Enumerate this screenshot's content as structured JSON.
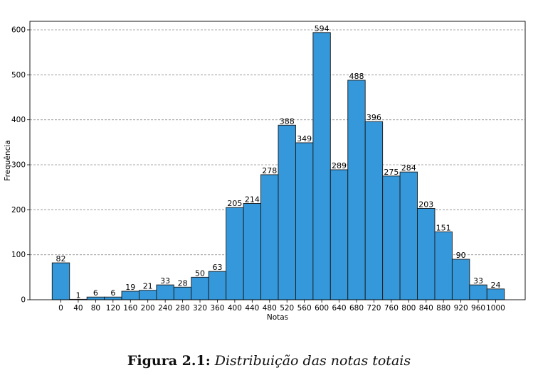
{
  "chart_data": {
    "type": "bar",
    "categories": [
      "0",
      "40",
      "80",
      "120",
      "160",
      "200",
      "240",
      "280",
      "320",
      "360",
      "400",
      "440",
      "480",
      "520",
      "560",
      "600",
      "640",
      "680",
      "720",
      "760",
      "800",
      "840",
      "880",
      "920",
      "960",
      "1000"
    ],
    "values": [
      82,
      1,
      6,
      6,
      19,
      21,
      33,
      28,
      50,
      63,
      205,
      214,
      278,
      388,
      349,
      594,
      289,
      488,
      396,
      275,
      284,
      203,
      151,
      90,
      33,
      24
    ],
    "data_labels": [
      "82",
      "1",
      "6",
      "6",
      "19",
      "21",
      "33",
      "28",
      "50",
      "63",
      "205",
      "214",
      "278",
      "388",
      "349",
      "594",
      "289",
      "488",
      "396",
      "275",
      "284",
      "203",
      "151",
      "90",
      "33",
      "24"
    ],
    "xlabel": "Notas",
    "ylabel": "Frequência",
    "ylim": [
      0,
      620
    ],
    "yticks": [
      0,
      100,
      200,
      300,
      400,
      500,
      600
    ],
    "ytick_labels": [
      "0",
      "100",
      "200",
      "300",
      "400",
      "500",
      "600"
    ],
    "grid": "y-dashed",
    "bar_color": "#3498db",
    "edge_color": "#1a1a1a"
  },
  "caption": {
    "label": "Figura 2.1:",
    "text": "Distribuição das notas totais"
  }
}
